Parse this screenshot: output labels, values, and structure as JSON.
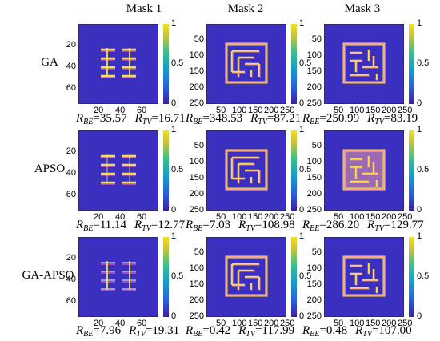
{
  "figure": {
    "columns": [
      "Mask 1",
      "Mask 2",
      "Mask 3"
    ],
    "rows": [
      {
        "label": "GA",
        "metrics": [
          {
            "rbe": "=35.57",
            "rtv": "=16.71"
          },
          {
            "rbe": "=348.53",
            "rtv": "=87.21"
          },
          {
            "rbe": "=250.99",
            "rtv": "=83.19"
          }
        ]
      },
      {
        "label": "APSO",
        "metrics": [
          {
            "rbe": "=11.14",
            "rtv": "=12.77"
          },
          {
            "rbe": "=7.03",
            "rtv": "=108.98"
          },
          {
            "rbe": "=286.20",
            "rtv": "=129.77"
          }
        ]
      },
      {
        "label": "GA-APSO",
        "metrics": [
          {
            "rbe": "=7.96",
            "rtv": "=19.31"
          },
          {
            "rbe": "=0.42",
            "rtv": "=117.99"
          },
          {
            "rbe": "=0.48",
            "rtv": "=107.00"
          }
        ]
      }
    ],
    "symbols": {
      "r": "R",
      "be": "BE",
      "tv": "TV"
    },
    "axes": {
      "mask1_y_ticks": [
        "20",
        "40",
        "60"
      ],
      "mask1_x_ticks": [
        "20",
        "40",
        "60"
      ],
      "mask23_y_ticks": [
        "50",
        "100",
        "150",
        "200",
        "250"
      ],
      "mask23_x_ticks": [
        "50",
        "100",
        "150",
        "200",
        "250"
      ]
    },
    "colorbar_ticks": [
      "1",
      "0.5",
      "0"
    ],
    "colors": {
      "background": "#3b2fbf",
      "pattern": "#f4e14a",
      "edge": "#ff6ad5"
    }
  }
}
